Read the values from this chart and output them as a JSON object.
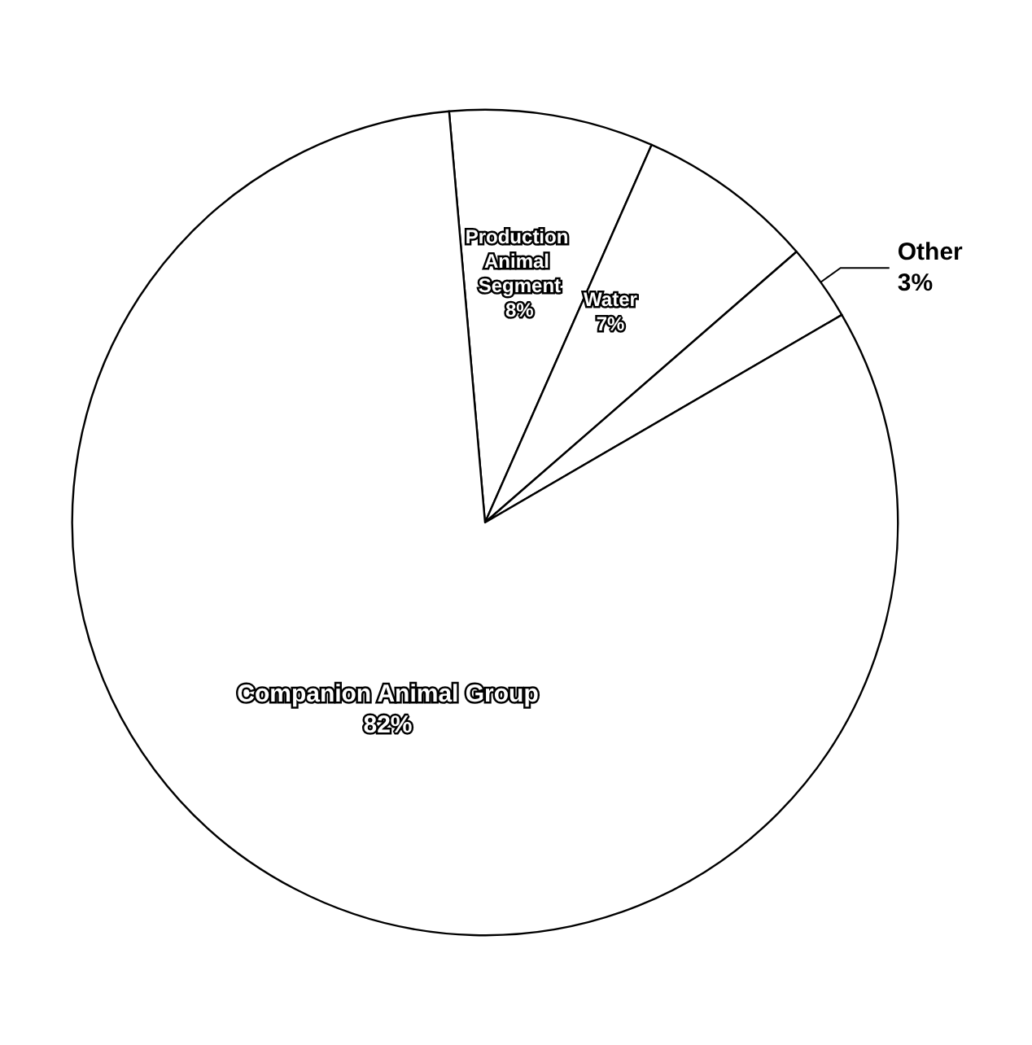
{
  "chart_data": {
    "type": "pie",
    "categories": [
      "Production Animal Segment",
      "Water",
      "Other",
      "Companion Animal Group"
    ],
    "values": [
      8,
      7,
      3,
      82
    ],
    "value_labels": [
      "8%",
      "7%",
      "3%",
      "82%"
    ],
    "colors": [
      "#ffffff",
      "#ffffff",
      "#ffffff",
      "#ffffff"
    ]
  }
}
